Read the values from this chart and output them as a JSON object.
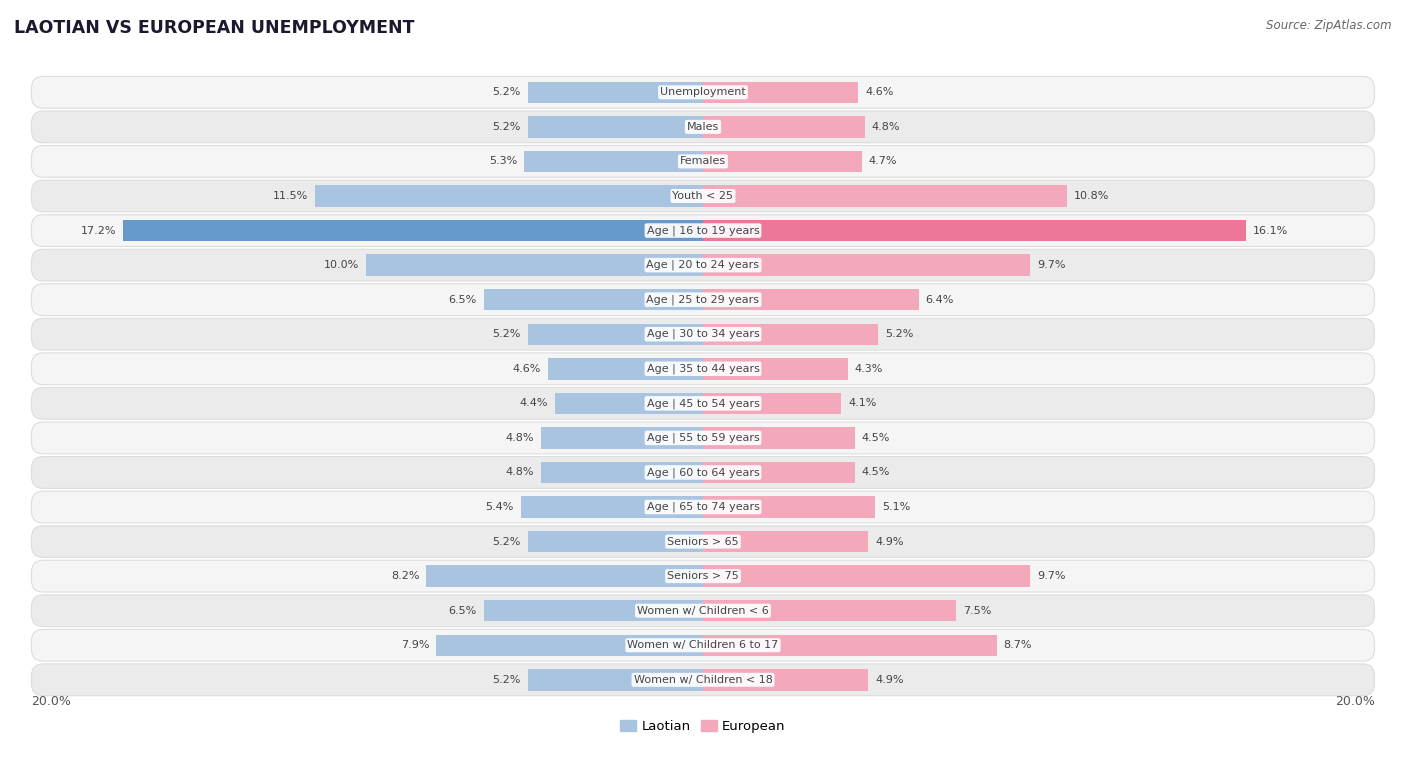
{
  "title": "LAOTIAN VS EUROPEAN UNEMPLOYMENT",
  "source": "Source: ZipAtlas.com",
  "categories": [
    "Unemployment",
    "Males",
    "Females",
    "Youth < 25",
    "Age | 16 to 19 years",
    "Age | 20 to 24 years",
    "Age | 25 to 29 years",
    "Age | 30 to 34 years",
    "Age | 35 to 44 years",
    "Age | 45 to 54 years",
    "Age | 55 to 59 years",
    "Age | 60 to 64 years",
    "Age | 65 to 74 years",
    "Seniors > 65",
    "Seniors > 75",
    "Women w/ Children < 6",
    "Women w/ Children 6 to 17",
    "Women w/ Children < 18"
  ],
  "laotian": [
    5.2,
    5.2,
    5.3,
    11.5,
    17.2,
    10.0,
    6.5,
    5.2,
    4.6,
    4.4,
    4.8,
    4.8,
    5.4,
    5.2,
    8.2,
    6.5,
    7.9,
    5.2
  ],
  "european": [
    4.6,
    4.8,
    4.7,
    10.8,
    16.1,
    9.7,
    6.4,
    5.2,
    4.3,
    4.1,
    4.5,
    4.5,
    5.1,
    4.9,
    9.7,
    7.5,
    8.7,
    4.9
  ],
  "laotian_color": "#a8c4e0",
  "european_color": "#f4a8bc",
  "laotian_highlight": "#6699cc",
  "european_highlight": "#ee7799",
  "background_color": "#ffffff",
  "row_bg_even": "#f2f2f2",
  "row_bg_odd": "#e8e8e8",
  "max_val": 20.0,
  "legend_laotian": "Laotian",
  "legend_european": "European"
}
